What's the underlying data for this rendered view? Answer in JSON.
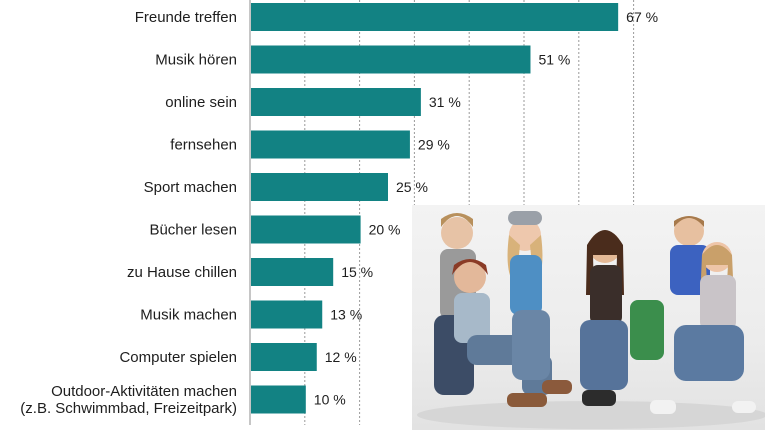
{
  "chart_data": {
    "type": "bar",
    "orientation": "horizontal",
    "categories": [
      "Freunde treffen",
      "Musik hören",
      "online sein",
      "fernsehen",
      "Sport machen",
      "Bücher lesen",
      "zu Hause chillen",
      "Musik machen",
      "Computer spielen",
      [
        "Outdoor-Aktivitäten machen",
        "(z.B. Schwimmbad, Freizeitpark)"
      ]
    ],
    "values": [
      67,
      51,
      31,
      29,
      25,
      20,
      15,
      13,
      12,
      10
    ],
    "value_labels": [
      "67 %",
      "51 %",
      "31 %",
      "29 %",
      "25 %",
      "20 %",
      "15 %",
      "13 %",
      "12 %",
      "10 %"
    ],
    "xlim": [
      0,
      75
    ],
    "gridlines": [
      10,
      20,
      30,
      40,
      50,
      60,
      70
    ],
    "grid": true,
    "bar_color": "#128283"
  },
  "photo": {
    "description_icon": "group-photo-of-teenagers"
  }
}
